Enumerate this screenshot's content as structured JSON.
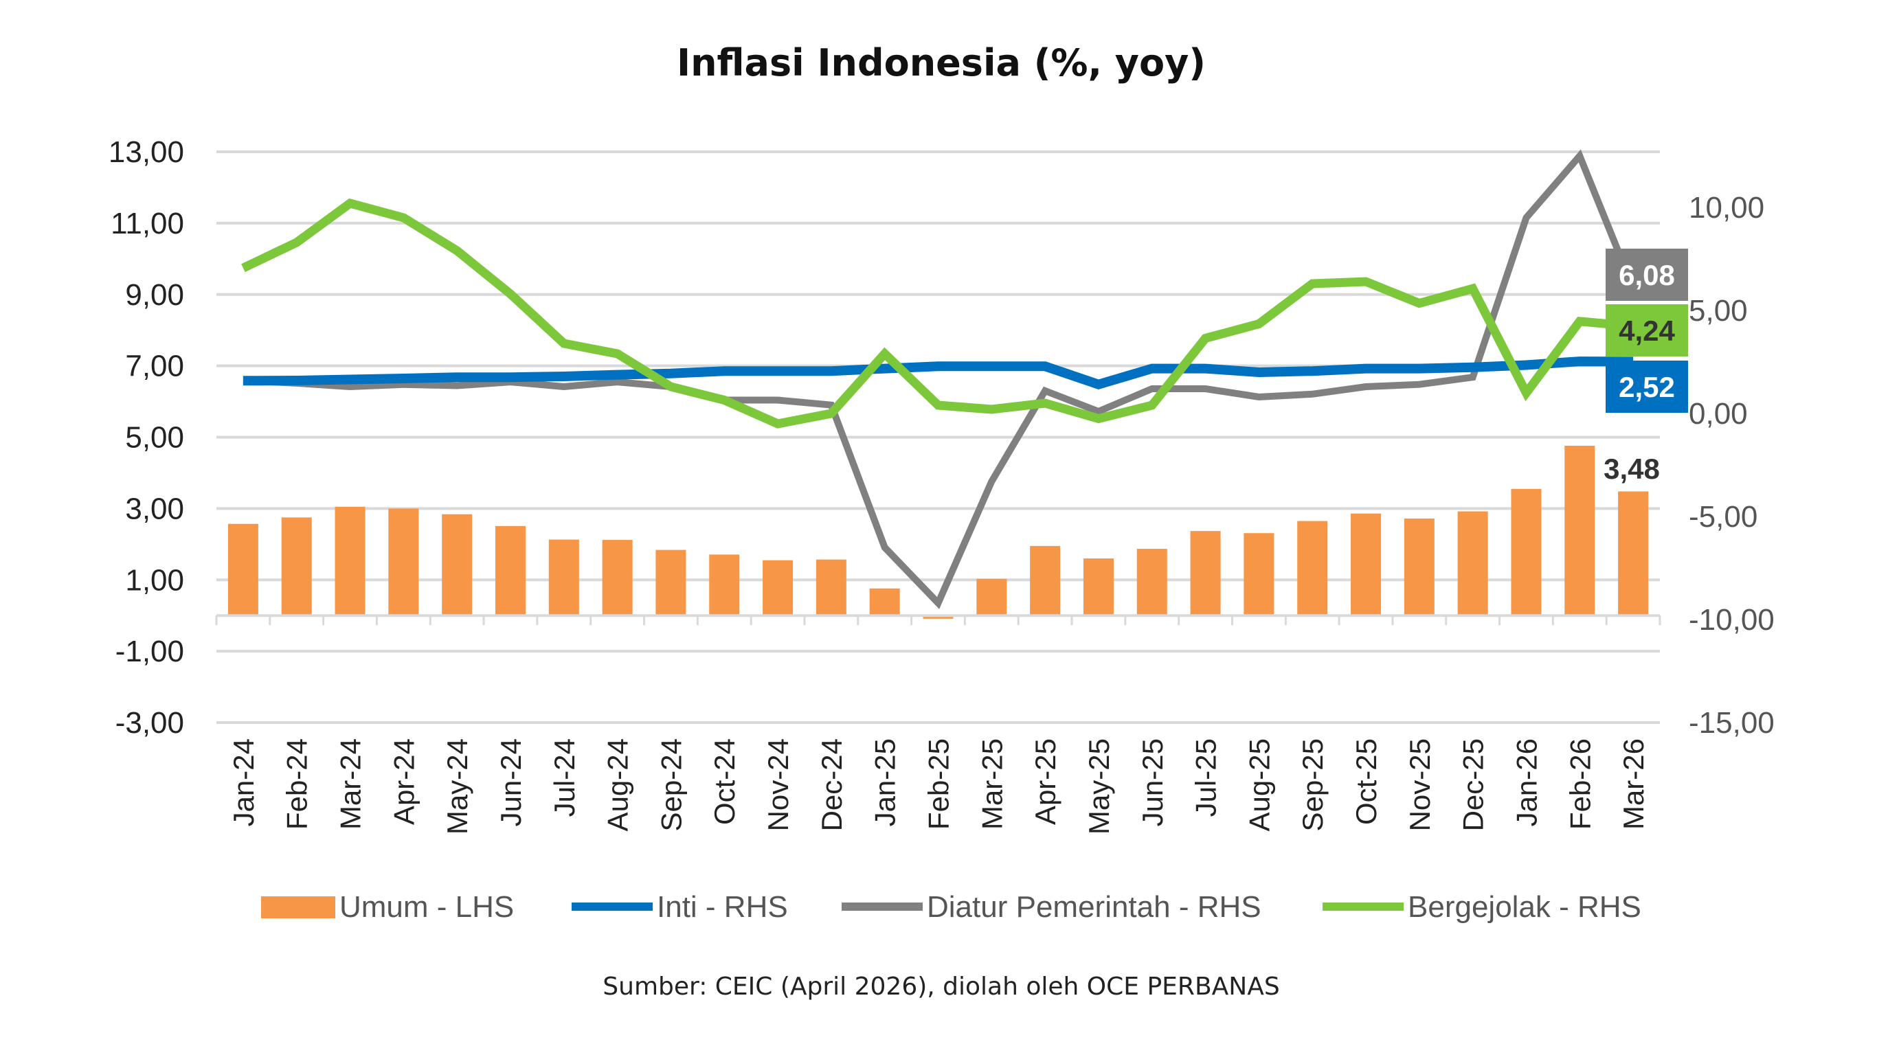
{
  "chart_data": {
    "type": "bar+line",
    "title": "Inflasi Indonesia (%, yoy)",
    "source": "Sumber: CEIC (April 2026), diolah oleh OCE PERBANAS",
    "categories": [
      "Jan-24",
      "Feb-24",
      "Mar-24",
      "Apr-24",
      "May-24",
      "Jun-24",
      "Jul-24",
      "Aug-24",
      "Sep-24",
      "Oct-24",
      "Nov-24",
      "Dec-24",
      "Jan-25",
      "Feb-25",
      "Mar-25",
      "Apr-25",
      "May-25",
      "Jun-25",
      "Jul-25",
      "Aug-25",
      "Sep-25",
      "Oct-25",
      "Nov-25",
      "Dec-25",
      "Jan-26",
      "Feb-26",
      "Mar-26"
    ],
    "ylim": [
      -3,
      13
    ],
    "yticks": [
      "13,00",
      "11,00",
      "9,00",
      "7,00",
      "5,00",
      "3,00",
      "1,00",
      "-1,00",
      "-3,00"
    ],
    "ytick_values": [
      13,
      11,
      9,
      7,
      5,
      3,
      1,
      -1,
      -3
    ],
    "y2lim": [
      -15,
      12.7
    ],
    "y2ticks": [
      "10,00",
      "5,00",
      "0,00",
      "-5,00",
      "-10,00",
      "-15,00"
    ],
    "y2tick_values": [
      10,
      5,
      0,
      -5,
      -10,
      -15
    ],
    "grid": true,
    "legend_position": "bottom",
    "series": [
      {
        "name": "Umum - LHS",
        "type": "bar",
        "axis": "left",
        "color": "#F79646",
        "values": [
          2.57,
          2.75,
          3.05,
          3.0,
          2.84,
          2.51,
          2.13,
          2.12,
          1.84,
          1.71,
          1.55,
          1.57,
          0.76,
          -0.09,
          1.03,
          1.95,
          1.6,
          1.87,
          2.37,
          2.31,
          2.65,
          2.86,
          2.72,
          2.92,
          3.55,
          4.76,
          3.48
        ],
        "end_label": "3,48"
      },
      {
        "name": "Inti - RHS",
        "type": "line",
        "axis": "right",
        "color": "#0070C0",
        "values": [
          1.59,
          1.6,
          1.65,
          1.7,
          1.76,
          1.76,
          1.8,
          1.88,
          1.94,
          2.06,
          2.06,
          2.06,
          2.18,
          2.29,
          2.29,
          2.29,
          1.41,
          2.18,
          2.18,
          2.0,
          2.06,
          2.18,
          2.18,
          2.24,
          2.35,
          2.53,
          2.52
        ],
        "end_label": "2,52"
      },
      {
        "name": "Diatur Pemerintah - RHS",
        "type": "line",
        "axis": "right",
        "color": "#808080",
        "values": [
          1.6,
          1.47,
          1.3,
          1.41,
          1.35,
          1.53,
          1.3,
          1.53,
          1.3,
          0.65,
          0.65,
          0.41,
          -6.5,
          -9.2,
          -3.3,
          1.1,
          0.1,
          1.2,
          1.2,
          0.8,
          0.94,
          1.3,
          1.41,
          1.76,
          9.5,
          12.5,
          6.08
        ],
        "end_label": "6,08"
      },
      {
        "name": "Bergejolak - RHS",
        "type": "line",
        "axis": "right",
        "color": "#7DC83A",
        "values": [
          7.06,
          8.3,
          10.2,
          9.5,
          7.9,
          5.8,
          3.4,
          2.9,
          1.3,
          0.65,
          -0.5,
          0.0,
          2.9,
          0.4,
          0.2,
          0.5,
          -0.25,
          0.4,
          3.65,
          4.35,
          6.3,
          6.4,
          5.35,
          6.06,
          1.0,
          4.47,
          4.24
        ],
        "end_label": "4,24"
      }
    ]
  }
}
